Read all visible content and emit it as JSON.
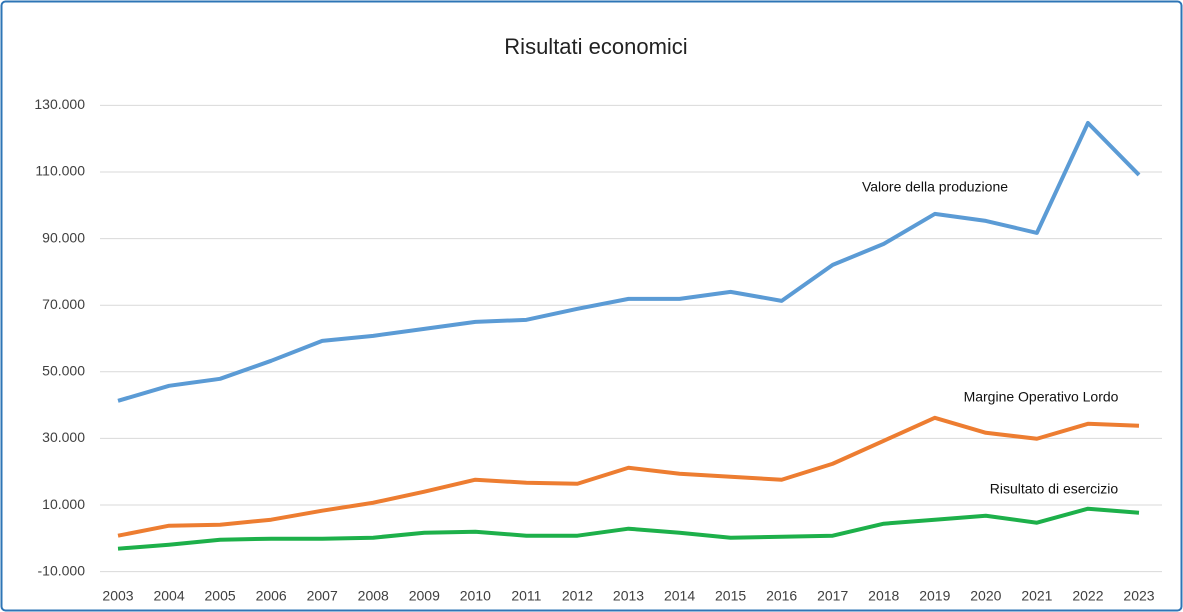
{
  "chart_data": {
    "type": "line",
    "title": "Risultati economici",
    "categories": [
      "2003",
      "2004",
      "2005",
      "2006",
      "2007",
      "2008",
      "2009",
      "2010",
      "2011",
      "2012",
      "2013",
      "2014",
      "2015",
      "2016",
      "2017",
      "2018",
      "2019",
      "2020",
      "2021",
      "2022",
      "2023"
    ],
    "series": [
      {
        "name": "Valore della produzione",
        "color": "#5b9bd5",
        "values": [
          41300,
          45800,
          47900,
          53300,
          59300,
          60800,
          62900,
          65000,
          65600,
          68900,
          71900,
          71900,
          74000,
          71300,
          82100,
          88400,
          97400,
          95300,
          91700,
          124700,
          109100
        ]
      },
      {
        "name": "Margine Operativo Lordo",
        "color": "#ed7d31",
        "values": [
          800,
          3800,
          4100,
          5600,
          8300,
          10700,
          14000,
          17600,
          16700,
          16400,
          21200,
          19400,
          18500,
          17600,
          22400,
          29300,
          36200,
          31700,
          29900,
          34400,
          33800
        ]
      },
      {
        "name": "Risultato di esercizio",
        "color": "#1db04a",
        "values": [
          -3100,
          -1900,
          -400,
          -100,
          -100,
          200,
          1700,
          2000,
          800,
          800,
          2900,
          1700,
          200,
          500,
          800,
          4400,
          5600,
          6800,
          4700,
          8900,
          7700
        ]
      }
    ],
    "ylim": [
      -14000,
      134000
    ],
    "yticks": [
      {
        "value": -10000,
        "label": "-10.000"
      },
      {
        "value": 10000,
        "label": "10.000"
      },
      {
        "value": 30000,
        "label": "30.000"
      },
      {
        "value": 50000,
        "label": "50.000"
      },
      {
        "value": 70000,
        "label": "70.000"
      },
      {
        "value": 90000,
        "label": "90.000"
      },
      {
        "value": 110000,
        "label": "110.000"
      },
      {
        "value": 130000,
        "label": "130.000"
      }
    ],
    "grid": true
  }
}
